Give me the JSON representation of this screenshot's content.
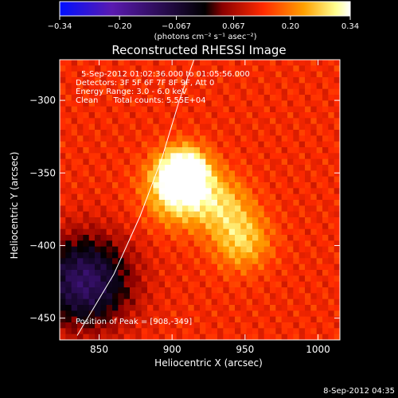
{
  "chart_data": {
    "type": "heatmap",
    "title": "Reconstructed RHESSI Image",
    "xlabel": "Heliocentric X (arcsec)",
    "ylabel": "Heliocentric Y (arcsec)",
    "xlim": [
      823,
      1015
    ],
    "ylim": [
      -465,
      -272
    ],
    "xticks": [
      850,
      900,
      950,
      1000
    ],
    "xtick_labels": [
      "850",
      "900",
      "950",
      "1000"
    ],
    "yticks": [
      -300,
      -350,
      -400,
      -450
    ],
    "ytick_labels": [
      "−300",
      "−350",
      "−400",
      "−450"
    ],
    "colorbar": {
      "range": [
        -0.34,
        0.34
      ],
      "ticks": [
        -0.34,
        -0.2,
        -0.067,
        0.067,
        0.2,
        0.34
      ],
      "tick_labels": [
        "−0.34",
        "−0.20",
        "−0.067",
        "0.067",
        "0.20",
        "0.34"
      ],
      "unit_label": "(photons cm⁻² s⁻¹ asec⁻²)",
      "colors": [
        "#0010ff",
        "#5a1ab0",
        "#000000",
        "#8a0000",
        "#ff2a00",
        "#ffa000",
        "#ffff90",
        "#ffffff"
      ]
    },
    "annotations": [
      "5-Sep-2012 01:02:36.000 to 01:05:56.000",
      "Detectors: 3F 5F 6F 7F 8F 9F, Att 0",
      "Energy Range: 3.0 - 6.0 keV",
      "Clean      Total counts: 5.55E+04",
      "Position of Peak = [908,-349]"
    ],
    "sources": [
      {
        "x": 908,
        "y": -349,
        "intensity": 0.34
      },
      {
        "x": 905,
        "y": -362,
        "intensity": 0.27
      },
      {
        "x": 948,
        "y": -397,
        "intensity": 0.18
      },
      {
        "x": 935,
        "y": -372,
        "intensity": 0.15
      }
    ],
    "background_level": 0.13,
    "negative_region": {
      "x": 840,
      "y": -425,
      "intensity": -0.12
    },
    "limb_curve": [
      [
        835,
        -462
      ],
      [
        860,
        -420
      ],
      [
        878,
        -380
      ],
      [
        893,
        -340
      ],
      [
        905,
        -300
      ],
      [
        915,
        -272
      ]
    ],
    "peak": {
      "x": 908,
      "y": -349
    }
  },
  "timestamp": "8-Sep-2012 04:35"
}
